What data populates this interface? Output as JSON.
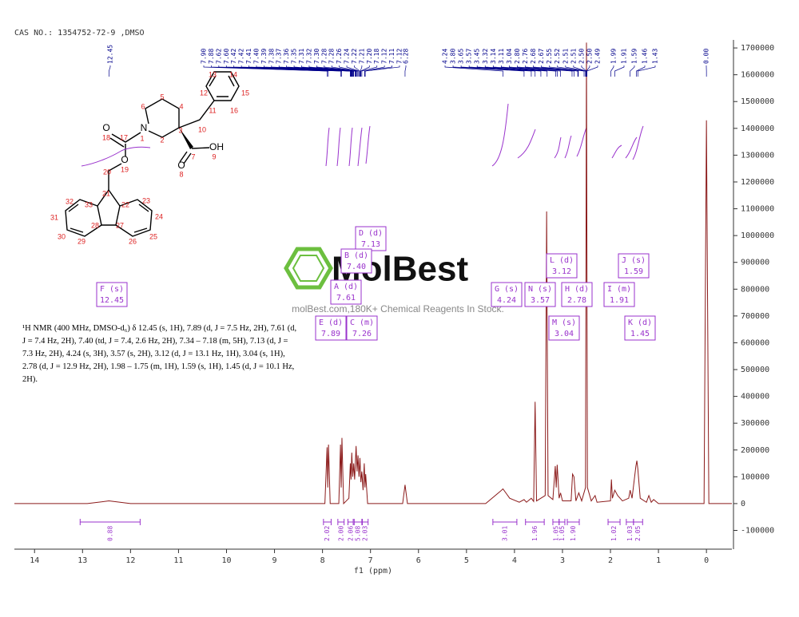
{
  "header": "CAS NO.: 1354752-72-9 ,DMSO",
  "nmr_text": "¹H NMR (400 MHz, DMSO-d₆) δ 12.45 (s, 1H), 7.89 (d, J = 7.5 Hz, 2H), 7.61 (d, J = 7.4 Hz, 2H), 7.40 (td, J = 7.4, 2.6 Hz, 2H), 7.34 – 7.18 (m, 5H), 7.13 (d, J = 7.3 Hz, 2H), 4.24 (s, 3H), 3.57 (s, 2H), 3.12 (d, J = 13.1 Hz, 1H), 3.04 (s, 1H), 2.78 (d, J = 12.9 Hz, 2H), 1.98 – 1.75 (m, 1H), 1.59 (s, 1H), 1.45 (d, J = 10.1 Hz, 2H).",
  "watermark": {
    "brand": "MolBest",
    "tagline": "molBest.com,180K+ Chemical Reagents In Stock."
  },
  "molecule": {
    "atom_symbols": [
      "N",
      "O",
      "O",
      "OH",
      "O"
    ],
    "atom_numbers": [
      "1",
      "2",
      "3",
      "4",
      "5",
      "6",
      "7",
      "8",
      "9",
      "10",
      "11",
      "12",
      "13",
      "14",
      "15",
      "16",
      "17",
      "18",
      "19",
      "20",
      "21",
      "22",
      "23",
      "24",
      "25",
      "26",
      "27",
      "28",
      "29",
      "30",
      "31",
      "32",
      "33"
    ]
  },
  "chart_data": {
    "type": "line",
    "x_label": "f1 (ppm)",
    "xlim": [
      14.42,
      -0.53
    ],
    "xticks": [
      14,
      13,
      12,
      11,
      10,
      9,
      8,
      7,
      6,
      5,
      4,
      3,
      2,
      1,
      0
    ],
    "ylim": [
      -170000,
      1730000
    ],
    "yticks": [
      -100000,
      0,
      100000,
      200000,
      300000,
      400000,
      500000,
      600000,
      700000,
      800000,
      900000,
      1000000,
      1100000,
      1200000,
      1300000,
      1400000,
      1500000,
      1600000,
      1700000
    ],
    "series": [
      {
        "color": "#8b1a1a",
        "x": [
          14.42,
          12.9,
          12.45,
          12.0,
          7.95,
          7.905,
          7.89,
          7.875,
          7.84,
          7.66,
          7.625,
          7.61,
          7.595,
          7.56,
          7.45,
          7.42,
          7.405,
          7.39,
          7.37,
          7.35,
          7.33,
          7.3,
          7.28,
          7.26,
          7.24,
          7.22,
          7.2,
          7.18,
          7.155,
          7.13,
          7.115,
          7.1,
          7.06,
          6.33,
          6.28,
          6.23,
          4.6,
          4.3,
          4.24,
          4.1,
          3.9,
          3.8,
          3.75,
          3.65,
          3.6,
          3.57,
          3.54,
          3.45,
          3.36,
          3.33,
          3.3,
          3.2,
          3.15,
          3.13,
          3.11,
          3.07,
          3.04,
          3.0,
          2.82,
          2.79,
          2.76,
          2.72,
          2.68,
          2.66,
          2.6,
          2.52,
          2.5,
          2.48,
          2.4,
          2.32,
          2.28,
          2.0,
          1.98,
          1.96,
          1.91,
          1.85,
          1.75,
          1.62,
          1.59,
          1.55,
          1.47,
          1.45,
          1.43,
          1.38,
          1.25,
          1.2,
          1.15,
          1.1,
          1.0,
          0.05,
          0.0,
          -0.05,
          -0.53
        ],
        "values": [
          0,
          0,
          10000,
          0,
          0,
          210000,
          60000,
          220000,
          0,
          0,
          220000,
          60000,
          245000,
          0,
          20000,
          150000,
          90000,
          190000,
          100000,
          150000,
          90000,
          215000,
          120000,
          180000,
          100000,
          170000,
          80000,
          120000,
          50000,
          150000,
          60000,
          110000,
          0,
          0,
          70000,
          0,
          0,
          45000,
          55000,
          20000,
          5000,
          15000,
          5000,
          20000,
          8000,
          380000,
          10000,
          20000,
          30000,
          1090000,
          30000,
          15000,
          140000,
          60000,
          145000,
          20000,
          40000,
          10000,
          10000,
          110000,
          100000,
          10000,
          30000,
          40000,
          10000,
          60000,
          1720000,
          60000,
          10000,
          30000,
          5000,
          10000,
          90000,
          20000,
          50000,
          30000,
          10000,
          20000,
          50000,
          20000,
          140000,
          160000,
          130000,
          20000,
          5000,
          30000,
          5000,
          15000,
          0,
          0,
          1430000,
          0,
          0
        ]
      }
    ],
    "peak_labels": [
      [
        "12.45"
      ],
      [
        "7.90",
        "7.88",
        "7.62",
        "7.60",
        "7.42",
        "7.42",
        "7.41",
        "7.40",
        "7.39",
        "7.38",
        "7.37",
        "7.36",
        "7.35",
        "7.31",
        "7.32",
        "7.30",
        "7.28",
        "7.28",
        "7.26",
        "7.24",
        "7.22",
        "7.21",
        "7.20",
        "7.18",
        "7.12",
        "7.11",
        "7.12"
      ],
      [
        "6.28"
      ],
      [
        "4.24",
        "3.80",
        "3.65",
        "3.57",
        "3.45",
        "3.32",
        "3.14",
        "3.11",
        "3.04",
        "2.80",
        "2.76",
        "2.68",
        "2.67",
        "2.55",
        "2.52",
        "2.51",
        "2.51",
        "2.50",
        "2.50",
        "2.49"
      ],
      [
        "1.99",
        "1.91",
        "1.59",
        "1.46",
        "1.43"
      ],
      [
        "0.00"
      ]
    ],
    "multiplets": [
      {
        "label": "F (s)",
        "shift": "12.45"
      },
      {
        "label": "D (d)",
        "shift": "7.13"
      },
      {
        "label": "B (d)",
        "shift": "7.40"
      },
      {
        "label": "A (d)",
        "shift": "7.61"
      },
      {
        "label": "E (d)",
        "shift": "7.89"
      },
      {
        "label": "C (m)",
        "shift": "7.26"
      },
      {
        "label": "G (s)",
        "shift": "4.24"
      },
      {
        "label": "N (s)",
        "shift": "3.57"
      },
      {
        "label": "L (d)",
        "shift": "3.12"
      },
      {
        "label": "H (d)",
        "shift": "2.78"
      },
      {
        "label": "M (s)",
        "shift": "3.04"
      },
      {
        "label": "I (m)",
        "shift": "1.91"
      },
      {
        "label": "J (s)",
        "shift": "1.59"
      },
      {
        "label": "K (d)",
        "shift": "1.45"
      }
    ],
    "integrals": [
      {
        "label": "0.88",
        "range": [
          13.05,
          11.8
        ]
      },
      {
        "label": "2.02",
        "range": [
          7.98,
          7.82
        ]
      },
      {
        "label": "2.00",
        "range": [
          7.68,
          7.55
        ]
      },
      {
        "label": "2.06",
        "range": [
          7.47,
          7.36
        ]
      },
      {
        "label": "5.08",
        "range": [
          7.34,
          7.18
        ]
      },
      {
        "label": "2.03",
        "range": [
          7.17,
          7.05
        ]
      },
      {
        "label": "3.01",
        "range": [
          4.45,
          3.95
        ]
      },
      {
        "label": "1.96",
        "range": [
          3.77,
          3.38
        ]
      },
      {
        "label": "1.05",
        "range": [
          3.2,
          3.07
        ]
      },
      {
        "label": "1.05",
        "range": [
          3.07,
          2.95
        ]
      },
      {
        "label": "1.90",
        "range": [
          2.9,
          2.65
        ]
      },
      {
        "label": "1.02",
        "range": [
          2.05,
          1.8
        ]
      },
      {
        "label": "1.03",
        "range": [
          1.67,
          1.52
        ]
      },
      {
        "label": "2.05",
        "range": [
          1.52,
          1.33
        ]
      }
    ]
  }
}
